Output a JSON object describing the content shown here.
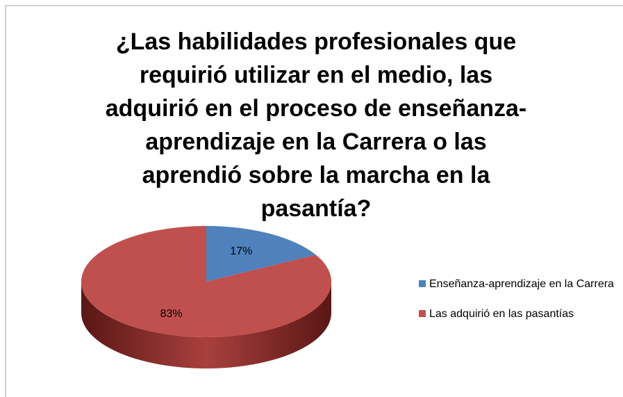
{
  "chart_data": {
    "type": "pie",
    "title": "¿Las habilidades profesionales que requirió utilizar en el medio, las adquirió en el proceso de enseñanza-aprendizaje en la Carrera o las aprendió sobre la marcha en la pasantía?",
    "categories": [
      "Enseñanza-aprendizaje en la Carrera",
      "Las adquirió en las pasantías"
    ],
    "values": [
      17,
      83
    ],
    "value_labels": [
      "17%",
      "83%"
    ],
    "colors": [
      "#4f81bd",
      "#c0504d"
    ],
    "legend": "right"
  }
}
